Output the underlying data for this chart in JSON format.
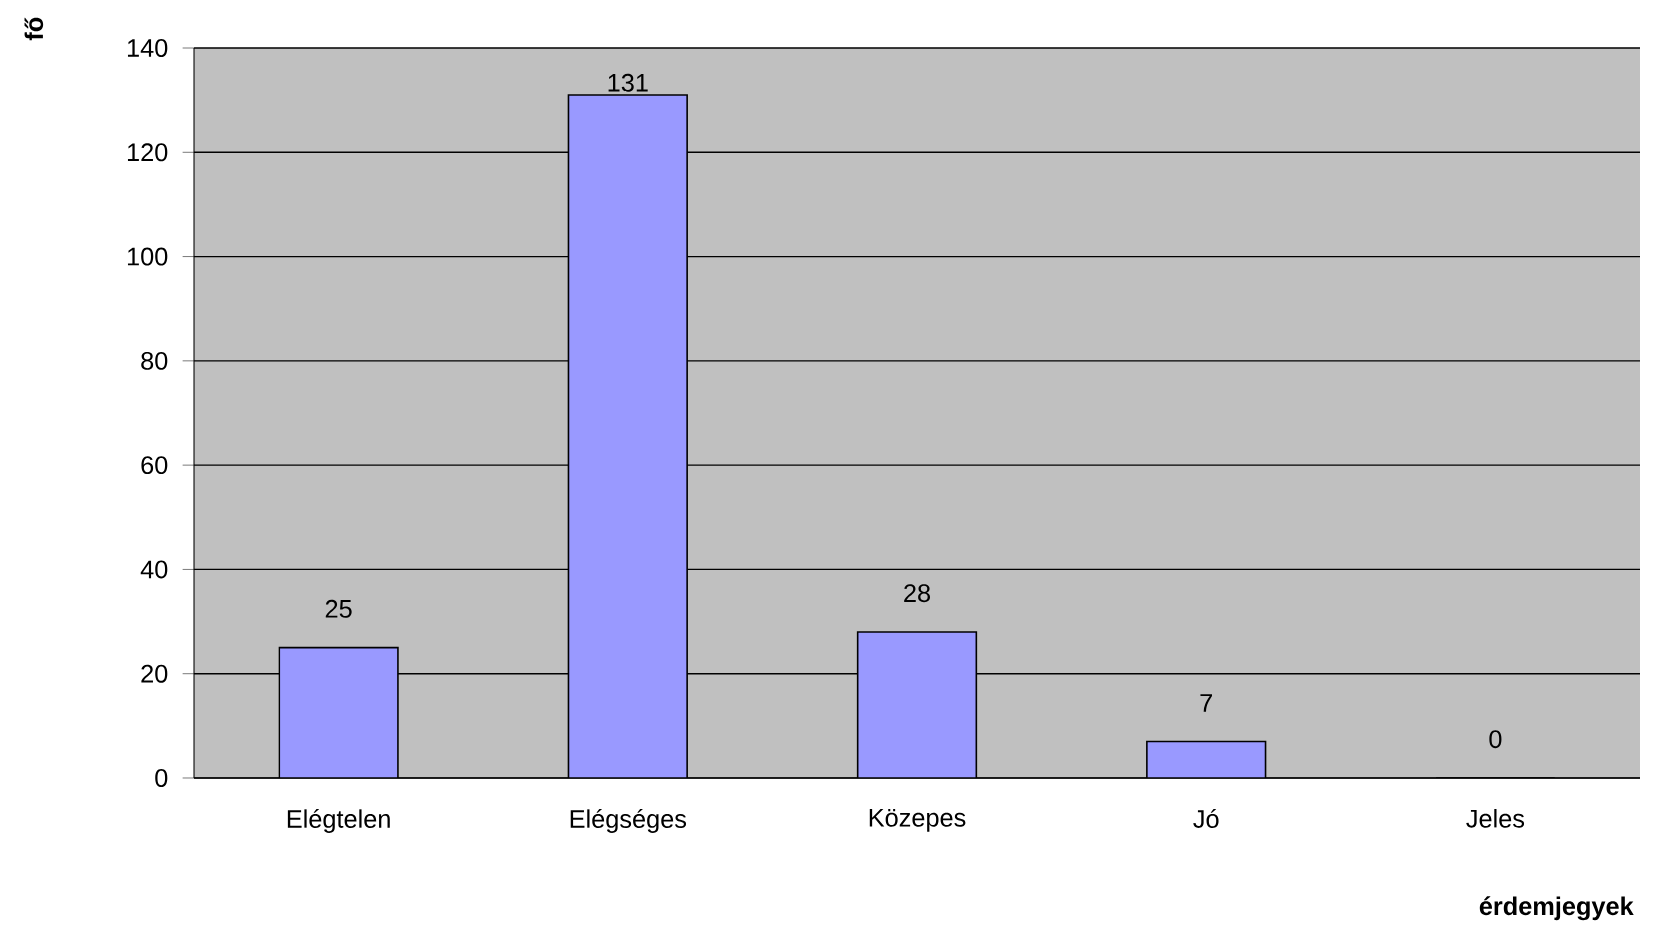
{
  "chart_data": {
    "type": "bar",
    "xlabel": "érdemjegyek",
    "ylabel": "fő",
    "categories": [
      "Elégtelen",
      "Elégséges",
      "Közepes",
      "Jó",
      "Jeles"
    ],
    "values": [
      25,
      131,
      28,
      7,
      0
    ],
    "color": "#9999ff",
    "ylim": [
      0,
      140
    ],
    "yticks": [
      0,
      20,
      40,
      60,
      80,
      100,
      120,
      140
    ],
    "grid": "y",
    "data_labels": true
  }
}
